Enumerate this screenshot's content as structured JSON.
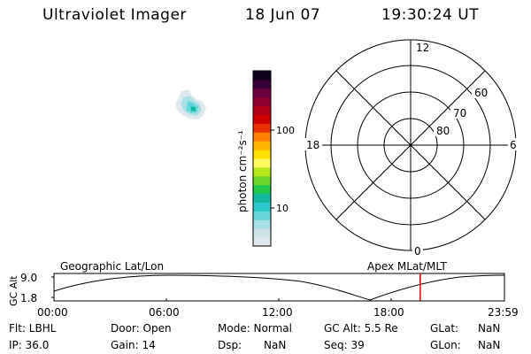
{
  "header": {
    "title": "Ultraviolet Imager",
    "date": "18 Jun 07",
    "time": "19:30:24 UT"
  },
  "colorbar": {
    "unit_label": "photon cm⁻²s⁻¹",
    "ticks": [
      "100",
      "10"
    ],
    "colors": [
      "#dfe8ec",
      "#cde3e8",
      "#a8e0e4",
      "#66d6d8",
      "#2ec9cc",
      "#12b8a0",
      "#22c84a",
      "#6ad62a",
      "#b8e81a",
      "#fffb60",
      "#ffe000",
      "#ffb400",
      "#ff8000",
      "#e83000",
      "#d00000",
      "#b00018",
      "#900030",
      "#6a0040",
      "#3a0038",
      "#10001a"
    ]
  },
  "polar_plot": {
    "mlt_labels": [
      "12",
      "18",
      "6",
      "0"
    ],
    "lat_labels": [
      "60",
      "70",
      "80"
    ]
  },
  "timeline": {
    "axis_label": "GC Alt",
    "y_ticks": [
      "9.0",
      "1.8"
    ],
    "left_caption": "Geographic Lat/Lon",
    "right_caption": "Apex MLat/MLT",
    "x_ticks": [
      "00:00",
      "06:00",
      "12:00",
      "18:00",
      "23:59"
    ],
    "marker_hours": 19.5,
    "marker_color": "#e00000"
  },
  "info": {
    "flt": "Flt: LBHL",
    "door": "Door: Open",
    "mode": "Mode: Normal",
    "gcalt": "GC Alt: 5.5 Re",
    "glat_label": "GLat:",
    "glat_value": "NaN",
    "ip": "IP: 36.0",
    "gain": "Gain: 14",
    "dsp_label": "Dsp:",
    "dsp_value": "NaN",
    "seq": "Seq: 39",
    "glon_label": "GLon:",
    "glon_value": "NaN"
  }
}
